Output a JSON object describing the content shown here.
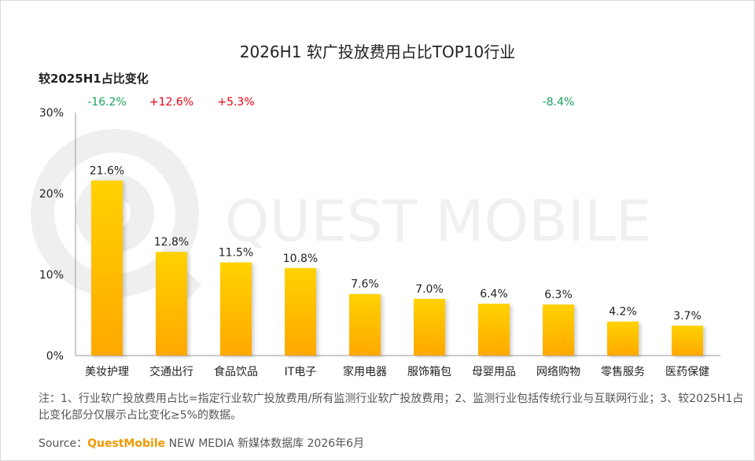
{
  "chart_data": {
    "type": "bar",
    "title": "2026H1 软广投放费用占比TOP10行业",
    "subtitle": "较2025H1占比变化",
    "categories": [
      "美妆护理",
      "交通出行",
      "食品饮品",
      "IT电子",
      "家用电器",
      "服饰箱包",
      "母婴用品",
      "网络购物",
      "零售服务",
      "医药保健"
    ],
    "values": [
      21.6,
      12.8,
      11.5,
      10.8,
      7.6,
      7.0,
      6.4,
      6.3,
      4.2,
      3.7
    ],
    "value_labels": [
      "21.6%",
      "12.8%",
      "11.5%",
      "10.8%",
      "7.6%",
      "7.0%",
      "6.4%",
      "6.3%",
      "4.2%",
      "3.7%"
    ],
    "changes": [
      "-16.2%",
      "+12.6%",
      "+5.3%",
      "",
      "",
      "",
      "",
      "-8.4%",
      "",
      ""
    ],
    "y_ticks": [
      0,
      10,
      20,
      30
    ],
    "y_tick_labels": [
      "0%",
      "10%",
      "20%",
      "30%"
    ],
    "ylim": [
      0,
      30
    ],
    "grid": false,
    "colors": {
      "bar_top": "#FFD200",
      "bar_bottom": "#FFA800",
      "negative_change": "#1aa35a",
      "positive_change": "#e60012",
      "axis": "#999999",
      "watermark": "#eeeeee"
    }
  },
  "watermark": "QUEST MOBILE",
  "footnote": "注：1、行业软广投放费用占比=指定行业软广投放费用/所有监测行业软广投放费用；2、监测行业包括传统行业与互联网行业；3、较2025H1占比变化部分仅展示占比变化≥5%的数据。",
  "source": {
    "prefix": "Source：",
    "brand": "QuestMobile",
    "rest": " NEW MEDIA 新媒体数据库 2026年6月"
  }
}
